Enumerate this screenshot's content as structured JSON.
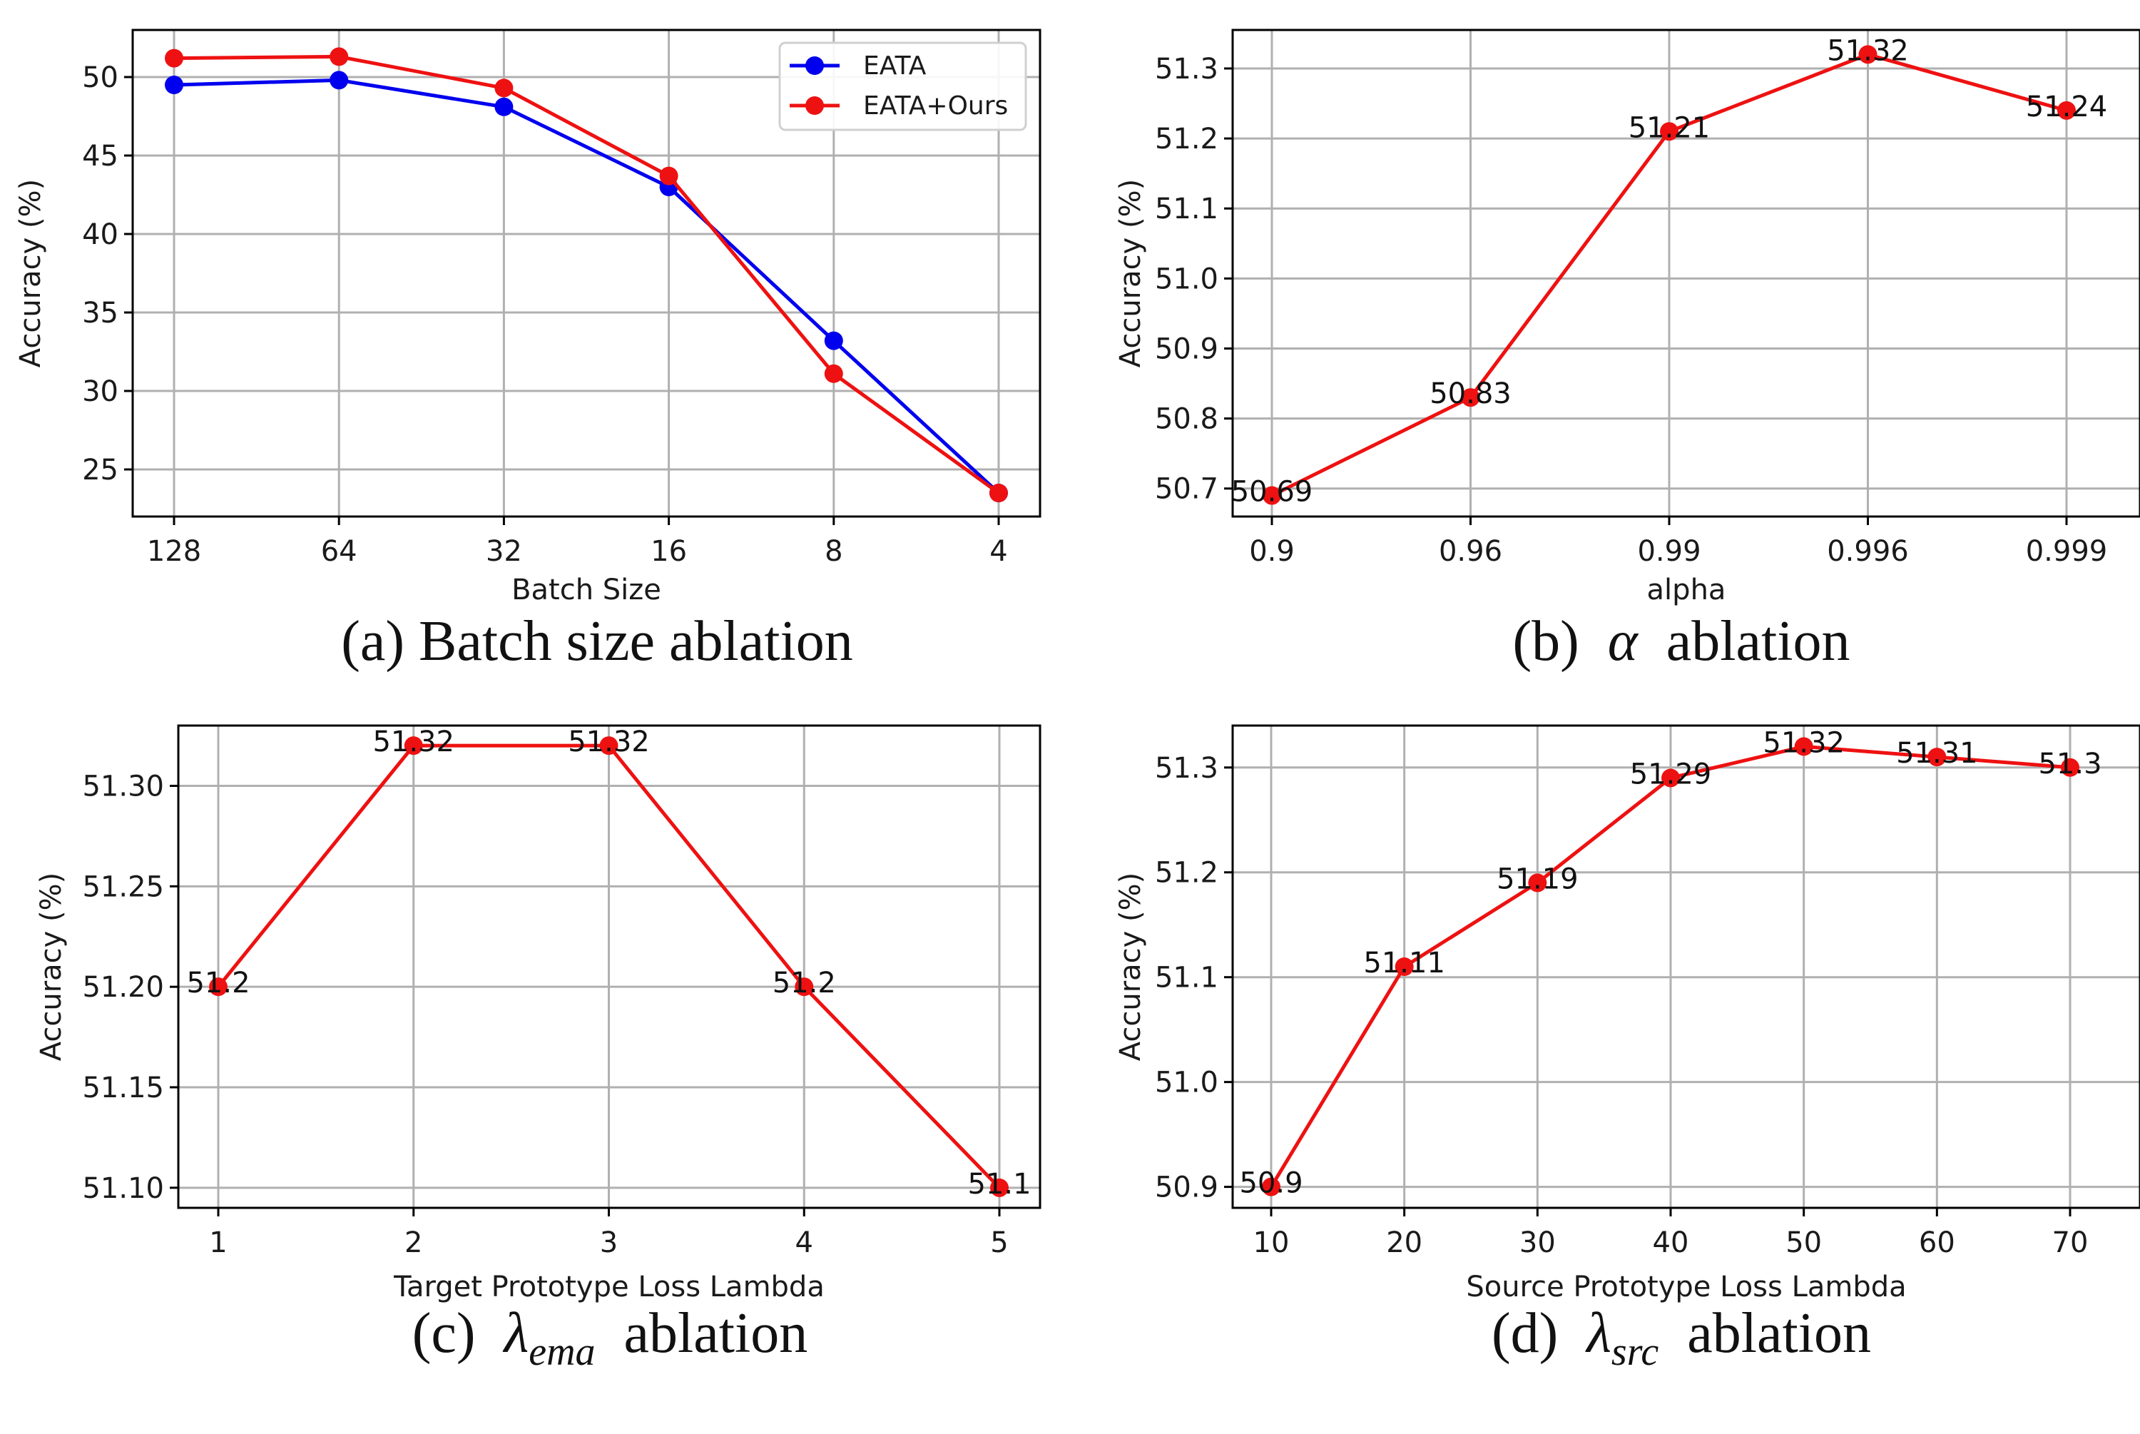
{
  "chart_data": [
    {
      "id": "a",
      "type": "line",
      "title": "",
      "xlabel": "Batch Size",
      "ylabel": "Accuracy (%)",
      "categories": [
        "128",
        "64",
        "32",
        "16",
        "8",
        "4"
      ],
      "ylim": [
        22,
        53
      ],
      "yticks": [
        25,
        30,
        35,
        40,
        45,
        50
      ],
      "ytick_labels": [
        "25",
        "30",
        "35",
        "40",
        "45",
        "50"
      ],
      "grid": true,
      "legend": "top-right",
      "series": [
        {
          "name": "EATA",
          "color": "#0000ee",
          "values": [
            49.5,
            49.8,
            48.1,
            43.0,
            33.2,
            23.5
          ]
        },
        {
          "name": "EATA+Ours",
          "color": "#ee1111",
          "values": [
            51.2,
            51.3,
            49.3,
            43.7,
            31.1,
            23.5
          ]
        }
      ],
      "caption": {
        "prefix": "(a) Batch size ablation",
        "symbol": "",
        "subscript": "",
        "suffix": ""
      }
    },
    {
      "id": "b",
      "type": "line",
      "title": "",
      "xlabel": "alpha",
      "ylabel": "Accuracy (%)",
      "categories": [
        "0.9",
        "0.96",
        "0.99",
        "0.996",
        "0.999"
      ],
      "ylim": [
        50.66,
        51.355
      ],
      "yticks": [
        50.7,
        50.8,
        50.9,
        51.0,
        51.1,
        51.2,
        51.3
      ],
      "ytick_labels": [
        "50.7",
        "50.8",
        "50.9",
        "51.0",
        "51.1",
        "51.2",
        "51.3"
      ],
      "grid": true,
      "series": [
        {
          "name": "",
          "color": "#ee1111",
          "values": [
            50.69,
            50.83,
            51.21,
            51.32,
            51.24
          ]
        }
      ],
      "data_labels": [
        "50.69",
        "50.83",
        "51.21",
        "51.32",
        "51.24"
      ],
      "caption": {
        "prefix": "(b)",
        "symbol": "α",
        "subscript": "",
        "suffix": "ablation"
      }
    },
    {
      "id": "c",
      "type": "line",
      "title": "",
      "xlabel": "Target Prototype Loss Lambda",
      "ylabel": "Accuracy (%)",
      "categories": [
        "1",
        "2",
        "3",
        "4",
        "5"
      ],
      "ylim": [
        51.09,
        51.33
      ],
      "yticks": [
        51.1,
        51.15,
        51.2,
        51.25,
        51.3
      ],
      "ytick_labels": [
        "51.10",
        "51.15",
        "51.20",
        "51.25",
        "51.30"
      ],
      "grid": true,
      "series": [
        {
          "name": "",
          "color": "#ee1111",
          "values": [
            51.2,
            51.32,
            51.32,
            51.2,
            51.1
          ]
        }
      ],
      "data_labels": [
        "51.2",
        "51.32",
        "51.32",
        "51.2",
        "51.1"
      ],
      "caption": {
        "prefix": "(c)",
        "symbol": "λ",
        "subscript": "ema",
        "suffix": "ablation"
      }
    },
    {
      "id": "d",
      "type": "line",
      "title": "",
      "xlabel": "Source Prototype Loss Lambda",
      "ylabel": "Accuracy (%)",
      "categories": [
        "10",
        "20",
        "30",
        "40",
        "50",
        "60",
        "70"
      ],
      "ylim": [
        50.88,
        51.34
      ],
      "yticks": [
        50.9,
        51.0,
        51.1,
        51.2,
        51.3
      ],
      "ytick_labels": [
        "50.9",
        "51.0",
        "51.1",
        "51.2",
        "51.3"
      ],
      "grid": true,
      "series": [
        {
          "name": "",
          "color": "#ee1111",
          "values": [
            50.9,
            51.11,
            51.19,
            51.29,
            51.32,
            51.31,
            51.3
          ]
        }
      ],
      "data_labels": [
        "50.9",
        "51.11",
        "51.19",
        "51.29",
        "51.32",
        "51.31",
        "51.3"
      ],
      "caption": {
        "prefix": "(d)",
        "symbol": "λ",
        "subscript": "src",
        "suffix": "ablation"
      }
    }
  ]
}
